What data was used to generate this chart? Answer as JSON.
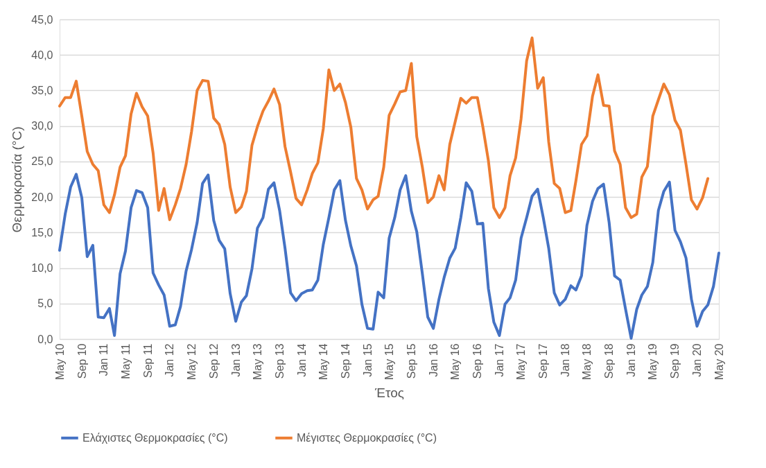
{
  "chart_data": {
    "type": "line",
    "xlabel": "Έτος",
    "ylabel": "Θερμοκρασία (°C)",
    "x": [
      "2010-05",
      "2010-06",
      "2010-07",
      "2010-08",
      "2010-09",
      "2010-10",
      "2010-11",
      "2010-12",
      "2011-01",
      "2011-02",
      "2011-03",
      "2011-04",
      "2011-05",
      "2011-06",
      "2011-07",
      "2011-08",
      "2011-09",
      "2011-10",
      "2011-11",
      "2011-12",
      "2012-01",
      "2012-02",
      "2012-03",
      "2012-04",
      "2012-05",
      "2012-06",
      "2012-07",
      "2012-08",
      "2012-09",
      "2012-10",
      "2012-11",
      "2012-12",
      "2013-01",
      "2013-02",
      "2013-03",
      "2013-04",
      "2013-05",
      "2013-06",
      "2013-07",
      "2013-08",
      "2013-09",
      "2013-10",
      "2013-11",
      "2013-12",
      "2014-01",
      "2014-02",
      "2014-03",
      "2014-04",
      "2014-05",
      "2014-06",
      "2014-07",
      "2014-08",
      "2014-09",
      "2014-10",
      "2014-11",
      "2014-12",
      "2015-01",
      "2015-02",
      "2015-03",
      "2015-04",
      "2015-05",
      "2015-06",
      "2015-07",
      "2015-08",
      "2015-09",
      "2015-10",
      "2015-11",
      "2015-12",
      "2016-01",
      "2016-02",
      "2016-03",
      "2016-04",
      "2016-05",
      "2016-06",
      "2016-07",
      "2016-08",
      "2016-09",
      "2016-10",
      "2016-11",
      "2016-12",
      "2017-01",
      "2017-02",
      "2017-03",
      "2017-04",
      "2017-05",
      "2017-06",
      "2017-07",
      "2017-08",
      "2017-09",
      "2017-10",
      "2017-11",
      "2017-12",
      "2018-01",
      "2018-02",
      "2018-03",
      "2018-04",
      "2018-05",
      "2018-06",
      "2018-07",
      "2018-08",
      "2018-09",
      "2018-10",
      "2018-11",
      "2018-12",
      "2019-01",
      "2019-02",
      "2019-03",
      "2019-04",
      "2019-05",
      "2019-06",
      "2019-07",
      "2019-08",
      "2019-09",
      "2019-10",
      "2019-11",
      "2019-12",
      "2020-01",
      "2020-02",
      "2020-03",
      "2020-04",
      "2020-05"
    ],
    "series": [
      {
        "name": "Ελάχιστες Θερμοκρασίες (°C)",
        "color": "#4472c4",
        "values": [
          12.5,
          17.6,
          21.4,
          23.2,
          19.9,
          11.6,
          13.2,
          3.1,
          3.0,
          4.3,
          0.5,
          9.2,
          12.4,
          18.5,
          20.9,
          20.6,
          18.5,
          9.3,
          7.6,
          6.2,
          1.8,
          2.0,
          4.6,
          9.6,
          12.6,
          16.4,
          21.9,
          23.1,
          16.7,
          13.9,
          12.7,
          6.4,
          2.5,
          5.2,
          6.1,
          9.9,
          15.6,
          17.1,
          21.1,
          22.0,
          18.1,
          12.8,
          6.5,
          5.4,
          6.4,
          6.8,
          6.9,
          8.3,
          13.3,
          17.1,
          21.0,
          22.3,
          16.7,
          13.1,
          10.3,
          4.9,
          1.5,
          1.4,
          6.6,
          5.8,
          14.2,
          17.1,
          21.0,
          23.0,
          18.0,
          15.1,
          9.2,
          3.1,
          1.5,
          5.6,
          8.7,
          11.4,
          12.8,
          17.1,
          22.0,
          20.8,
          16.2,
          16.3,
          7.1,
          2.4,
          0.5,
          4.9,
          5.8,
          8.3,
          14.2,
          17.1,
          20.1,
          21.1,
          17.1,
          12.8,
          6.5,
          4.8,
          5.6,
          7.5,
          6.9,
          8.9,
          16.0,
          19.4,
          21.2,
          21.8,
          16.4,
          8.9,
          8.3,
          4.2,
          0.1,
          4.2,
          6.2,
          7.4,
          10.8,
          18.1,
          20.8,
          22.1,
          15.3,
          13.7,
          11.4,
          5.6,
          1.8,
          3.9,
          4.8,
          7.4,
          12.1
        ]
      },
      {
        "name": "Μέγιστες Θερμοκρασίες (°C)",
        "color": "#ed7d31",
        "values": [
          32.8,
          34.0,
          34.0,
          36.3,
          31.4,
          26.4,
          24.6,
          23.7,
          18.9,
          17.8,
          20.3,
          24.2,
          25.8,
          31.7,
          34.6,
          32.7,
          31.4,
          26.2,
          18.1,
          21.2,
          16.8,
          18.9,
          21.2,
          24.6,
          29.2,
          35.0,
          36.4,
          36.3,
          31.1,
          30.2,
          27.4,
          21.4,
          17.8,
          18.6,
          20.8,
          27.3,
          29.9,
          32.1,
          33.5,
          35.2,
          33.0,
          27.1,
          23.5,
          19.8,
          18.9,
          21.0,
          23.3,
          24.8,
          29.6,
          37.9,
          35.0,
          35.9,
          33.3,
          29.8,
          22.6,
          21.0,
          18.3,
          19.6,
          20.1,
          24.2,
          31.5,
          33.1,
          34.8,
          35.0,
          38.8,
          28.5,
          24.2,
          19.2,
          20.0,
          23.0,
          21.0,
          27.4,
          30.6,
          33.9,
          33.2,
          34.0,
          34.0,
          29.9,
          25.1,
          18.5,
          17.1,
          18.5,
          23.0,
          25.5,
          31.0,
          39.2,
          42.4,
          35.3,
          36.8,
          27.8,
          21.9,
          21.2,
          17.8,
          18.1,
          22.3,
          27.4,
          28.6,
          34.2,
          37.2,
          32.9,
          32.8,
          26.5,
          24.6,
          18.5,
          17.1,
          17.6,
          22.8,
          24.3,
          31.4,
          33.7,
          35.9,
          34.4,
          30.8,
          29.4,
          24.6,
          19.6,
          18.3,
          19.9,
          22.6,
          null,
          null
        ]
      }
    ],
    "xlim": [
      "2010-05",
      "2020-05"
    ],
    "xticks": [
      {
        "value": "2010-05",
        "label": "May 10"
      },
      {
        "value": "2010-09",
        "label": "Sep 10"
      },
      {
        "value": "2011-01",
        "label": "Jan 11"
      },
      {
        "value": "2011-05",
        "label": "May 11"
      },
      {
        "value": "2011-09",
        "label": "Sep 11"
      },
      {
        "value": "2012-01",
        "label": "Jan 12"
      },
      {
        "value": "2012-05",
        "label": "May 12"
      },
      {
        "value": "2012-09",
        "label": "Sep 12"
      },
      {
        "value": "2013-01",
        "label": "Jan 13"
      },
      {
        "value": "2013-05",
        "label": "May 13"
      },
      {
        "value": "2013-09",
        "label": "Sep 13"
      },
      {
        "value": "2014-01",
        "label": "Jan 14"
      },
      {
        "value": "2014-05",
        "label": "May 14"
      },
      {
        "value": "2014-09",
        "label": "Sep 14"
      },
      {
        "value": "2015-01",
        "label": "Jan 15"
      },
      {
        "value": "2015-05",
        "label": "May 15"
      },
      {
        "value": "2015-09",
        "label": "Sep 15"
      },
      {
        "value": "2016-01",
        "label": "Jan 16"
      },
      {
        "value": "2016-05",
        "label": "May 16"
      },
      {
        "value": "2016-09",
        "label": "Sep 16"
      },
      {
        "value": "2017-01",
        "label": "Jan 17"
      },
      {
        "value": "2017-05",
        "label": "May 17"
      },
      {
        "value": "2017-09",
        "label": "Sep 17"
      },
      {
        "value": "2018-01",
        "label": "Jan 18"
      },
      {
        "value": "2018-05",
        "label": "May 18"
      },
      {
        "value": "2018-09",
        "label": "Sep 18"
      },
      {
        "value": "2019-01",
        "label": "Jan 19"
      },
      {
        "value": "2019-05",
        "label": "May 19"
      },
      {
        "value": "2019-09",
        "label": "Sep 19"
      },
      {
        "value": "2020-01",
        "label": "Jan 20"
      },
      {
        "value": "2020-05",
        "label": "May 20"
      }
    ],
    "ylim": [
      0,
      45
    ],
    "yticks": [
      {
        "value": 0,
        "label": "0,0"
      },
      {
        "value": 5,
        "label": "5,0"
      },
      {
        "value": 10,
        "label": "10,0"
      },
      {
        "value": 15,
        "label": "15,0"
      },
      {
        "value": 20,
        "label": "20,0"
      },
      {
        "value": 25,
        "label": "25,0"
      },
      {
        "value": 30,
        "label": "30,0"
      },
      {
        "value": 35,
        "label": "35,0"
      },
      {
        "value": 40,
        "label": "40,0"
      },
      {
        "value": 45,
        "label": "45,0"
      }
    ],
    "grid": "y",
    "legend": "bottom"
  }
}
